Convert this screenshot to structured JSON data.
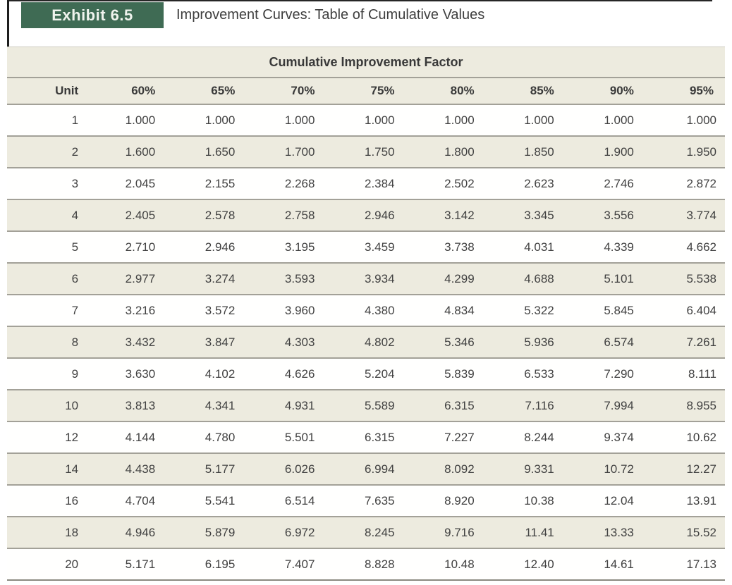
{
  "page": {
    "exhibit_label": "Exhibit 6.5",
    "title": "Improvement Curves: Table of Cumulative Values"
  },
  "table": {
    "caption": "Cumulative Improvement Factor",
    "columns": [
      "Unit",
      "60%",
      "65%",
      "70%",
      "75%",
      "80%",
      "85%",
      "90%",
      "95%"
    ],
    "rows": [
      [
        "1",
        "1.000",
        "1.000",
        "1.000",
        "1.000",
        "1.000",
        "1.000",
        "1.000",
        "1.000"
      ],
      [
        "2",
        "1.600",
        "1.650",
        "1.700",
        "1.750",
        "1.800",
        "1.850",
        "1.900",
        "1.950"
      ],
      [
        "3",
        "2.045",
        "2.155",
        "2.268",
        "2.384",
        "2.502",
        "2.623",
        "2.746",
        "2.872"
      ],
      [
        "4",
        "2.405",
        "2.578",
        "2.758",
        "2.946",
        "3.142",
        "3.345",
        "3.556",
        "3.774"
      ],
      [
        "5",
        "2.710",
        "2.946",
        "3.195",
        "3.459",
        "3.738",
        "4.031",
        "4.339",
        "4.662"
      ],
      [
        "6",
        "2.977",
        "3.274",
        "3.593",
        "3.934",
        "4.299",
        "4.688",
        "5.101",
        "5.538"
      ],
      [
        "7",
        "3.216",
        "3.572",
        "3.960",
        "4.380",
        "4.834",
        "5.322",
        "5.845",
        "6.404"
      ],
      [
        "8",
        "3.432",
        "3.847",
        "4.303",
        "4.802",
        "5.346",
        "5.936",
        "6.574",
        "7.261"
      ],
      [
        "9",
        "3.630",
        "4.102",
        "4.626",
        "5.204",
        "5.839",
        "6.533",
        "7.290",
        "8.111"
      ],
      [
        "10",
        "3.813",
        "4.341",
        "4.931",
        "5.589",
        "6.315",
        "7.116",
        "7.994",
        "8.955"
      ],
      [
        "12",
        "4.144",
        "4.780",
        "5.501",
        "6.315",
        "7.227",
        "8.244",
        "9.374",
        "10.62"
      ],
      [
        "14",
        "4.438",
        "5.177",
        "6.026",
        "6.994",
        "8.092",
        "9.331",
        "10.72",
        "12.27"
      ],
      [
        "16",
        "4.704",
        "5.541",
        "6.514",
        "7.635",
        "8.920",
        "10.38",
        "12.04",
        "13.91"
      ],
      [
        "18",
        "4.946",
        "5.879",
        "6.972",
        "8.245",
        "9.716",
        "11.41",
        "13.33",
        "15.52"
      ],
      [
        "20",
        "5.171",
        "6.195",
        "7.407",
        "8.828",
        "10.48",
        "12.40",
        "14.61",
        "17.13"
      ]
    ]
  },
  "colors": {
    "exhibit_box_green": "#3f6b54",
    "exhibit_text": "#eff3ed",
    "stripe_beige": "#edebdf",
    "row_border_gray": "#a3a198",
    "body_text": "#414141"
  }
}
